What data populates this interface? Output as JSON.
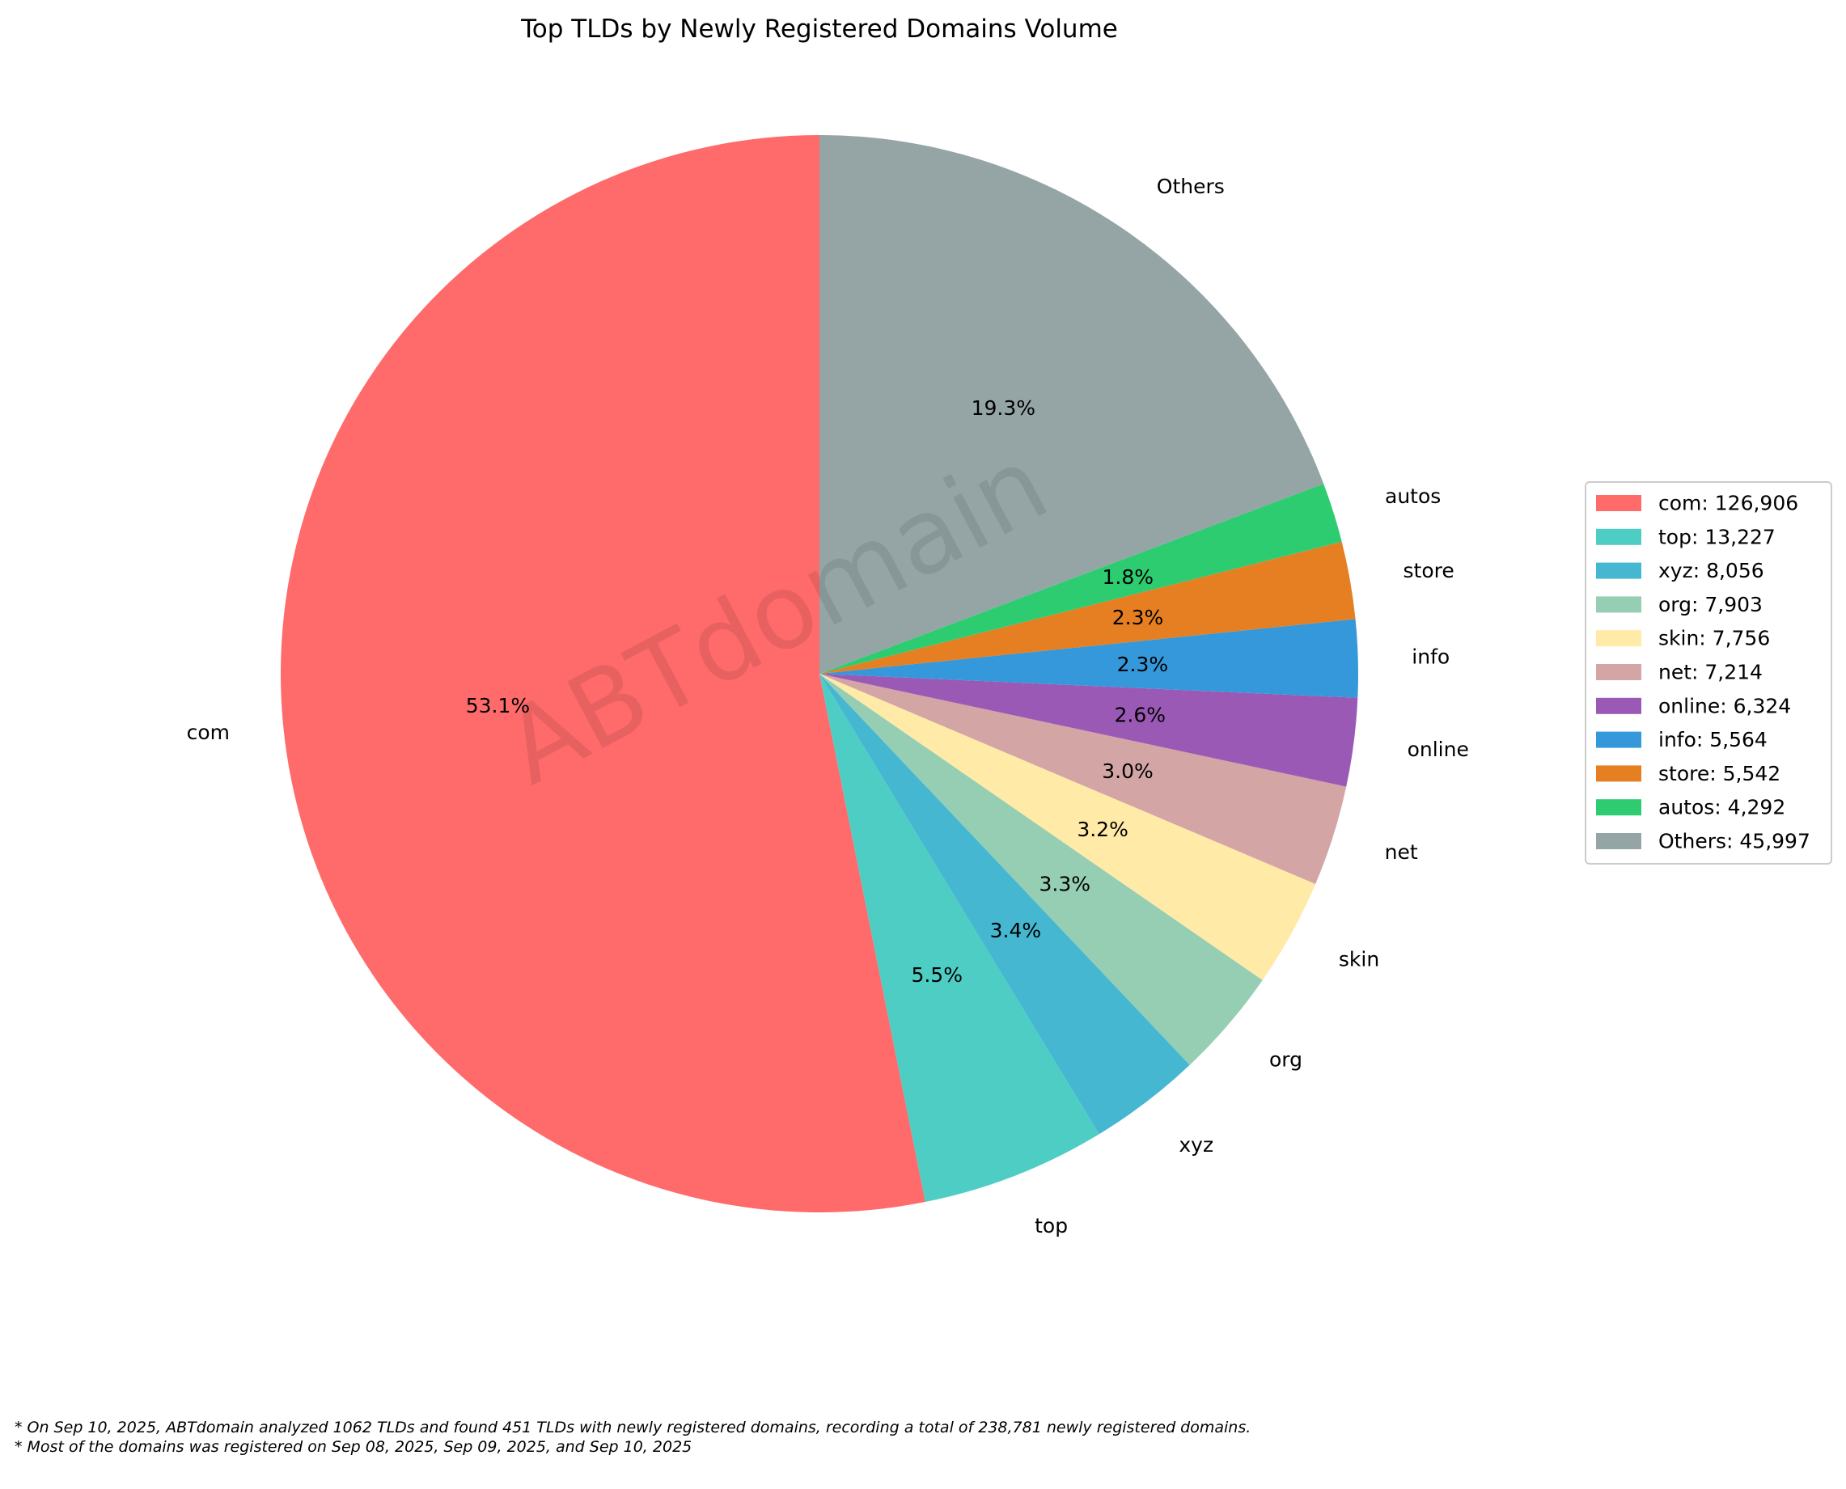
{
  "chart_data": {
    "type": "pie",
    "title": "Top TLDs by Newly Registered Domains Volume",
    "watermark": "ABTdomain",
    "start_angle_deg": 90,
    "direction": "counterclockwise",
    "legend_placement": "right",
    "slices": [
      {
        "label": "com",
        "value": 126906,
        "pct_label": "53.1%",
        "legend": "com: 126,906",
        "color": "#FF6B6B"
      },
      {
        "label": "top",
        "value": 13227,
        "pct_label": "5.5%",
        "legend": "top: 13,227",
        "color": "#4ECDC4"
      },
      {
        "label": "xyz",
        "value": 8056,
        "pct_label": "3.4%",
        "legend": "xyz: 8,056",
        "color": "#45B7D1"
      },
      {
        "label": "org",
        "value": 7903,
        "pct_label": "3.3%",
        "legend": "org: 7,903",
        "color": "#96CEB4"
      },
      {
        "label": "skin",
        "value": 7756,
        "pct_label": "3.2%",
        "legend": "skin: 7,756",
        "color": "#FFEAA7"
      },
      {
        "label": "net",
        "value": 7214,
        "pct_label": "3.0%",
        "legend": "net: 7,214",
        "color": "#D4A5A5"
      },
      {
        "label": "online",
        "value": 6324,
        "pct_label": "2.6%",
        "legend": "online: 6,324",
        "color": "#9B59B6"
      },
      {
        "label": "info",
        "value": 5564,
        "pct_label": "2.3%",
        "legend": "info: 5,564",
        "color": "#3498DB"
      },
      {
        "label": "store",
        "value": 5542,
        "pct_label": "2.3%",
        "legend": "store: 5,542",
        "color": "#E67E22"
      },
      {
        "label": "autos",
        "value": 4292,
        "pct_label": "1.8%",
        "legend": "autos: 4,292",
        "color": "#2ECC71"
      },
      {
        "label": "Others",
        "value": 45997,
        "pct_label": "19.3%",
        "legend": "Others: 45,997",
        "color": "#95A5A6"
      }
    ]
  },
  "footnotes": {
    "line1": "* On Sep 10, 2025, ABTdomain analyzed 1062 TLDs and found 451 TLDs with newly registered domains, recording a total of 238,781 newly registered domains.",
    "line2": "* Most of the domains was registered on Sep 08, 2025, Sep 09, 2025, and Sep 10, 2025"
  }
}
